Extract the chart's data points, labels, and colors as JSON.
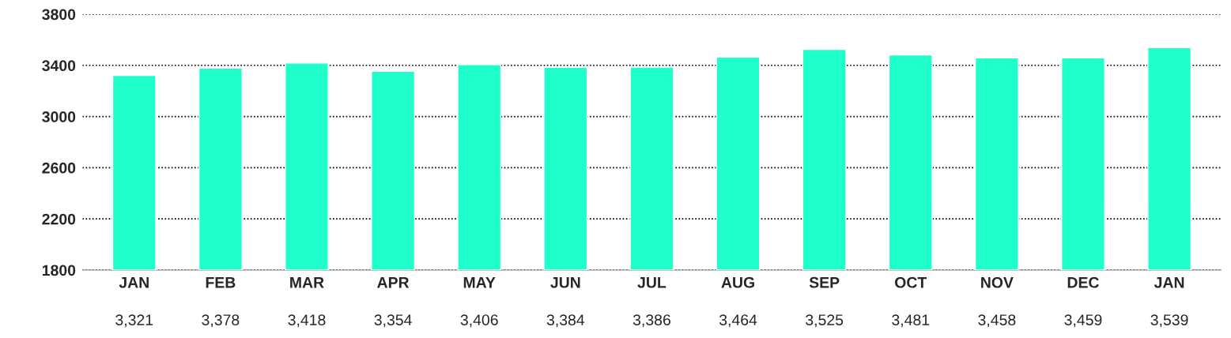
{
  "chart_data": {
    "type": "bar",
    "categories": [
      "JAN",
      "FEB",
      "MAR",
      "APR",
      "MAY",
      "JUN",
      "JUL",
      "AUG",
      "SEP",
      "OCT",
      "NOV",
      "DEC",
      "JAN"
    ],
    "values": [
      3321,
      3378,
      3418,
      3354,
      3406,
      3384,
      3386,
      3464,
      3525,
      3481,
      3458,
      3459,
      3539
    ],
    "value_labels": [
      "3,321",
      "3,378",
      "3,418",
      "3,354",
      "3,406",
      "3,384",
      "3,386",
      "3,464",
      "3,525",
      "3,481",
      "3,458",
      "3,459",
      "3,539"
    ],
    "color": "#1effcc",
    "ylim": [
      1800,
      3800
    ],
    "yticks": [
      1800,
      2200,
      2600,
      3000,
      3400,
      3800
    ],
    "grid": "y",
    "legend": false
  }
}
